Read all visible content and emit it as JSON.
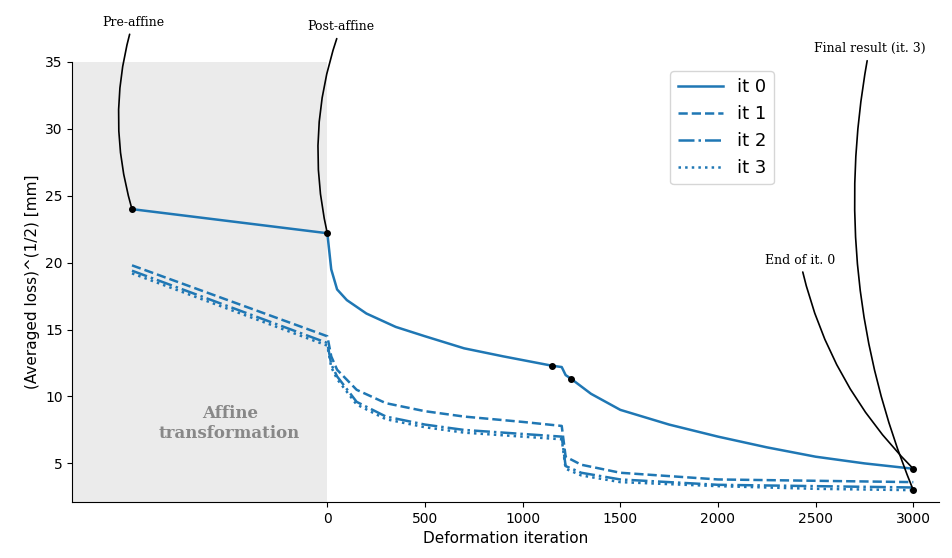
{
  "chart_data": {
    "type": "line",
    "xlabel": "Deformation iteration",
    "ylabel": "(Averaged loss)^(1/2) [mm]",
    "xlim": [
      -1305,
      3130
    ],
    "ylim": [
      2.1,
      35
    ],
    "xticks": [
      0,
      500,
      1000,
      1500,
      2000,
      2500,
      3000
    ],
    "yticks": [
      5,
      10,
      15,
      20,
      25,
      30,
      35
    ],
    "legend": "upper right",
    "shaded_region": {
      "x": [
        -1305,
        0
      ],
      "text": "Affine\ntransformation",
      "text_x": -500,
      "text_y": 8
    },
    "series": [
      {
        "name": "it 0",
        "color": "#1f77b4",
        "line_style": "solid",
        "x": [
          -1000,
          0,
          20,
          50,
          100,
          200,
          350,
          500,
          700,
          900,
          1150,
          1200,
          1220,
          1250,
          1350,
          1500,
          1750,
          2000,
          2250,
          2500,
          2750,
          3000
        ],
        "values": [
          24.0,
          22.2,
          19.5,
          18.0,
          17.2,
          16.2,
          15.2,
          14.5,
          13.6,
          13.0,
          12.3,
          12.2,
          11.6,
          11.3,
          10.2,
          9.0,
          7.9,
          7.0,
          6.2,
          5.5,
          5.0,
          4.6
        ]
      },
      {
        "name": "it 1",
        "color": "#1f77b4",
        "line_style": "dashed",
        "x": [
          -1000,
          0,
          20,
          50,
          150,
          300,
          500,
          700,
          1000,
          1200,
          1220,
          1300,
          1500,
          2000,
          2500,
          3000
        ],
        "values": [
          19.8,
          14.5,
          13.0,
          12.0,
          10.5,
          9.5,
          8.9,
          8.5,
          8.1,
          7.8,
          5.5,
          4.9,
          4.3,
          3.8,
          3.7,
          3.6
        ]
      },
      {
        "name": "it 2",
        "color": "#1f77b4",
        "line_style": "dashdot",
        "x": [
          -1000,
          0,
          20,
          50,
          150,
          300,
          500,
          700,
          1000,
          1200,
          1220,
          1300,
          1500,
          2000,
          2500,
          3000
        ],
        "values": [
          19.4,
          14.0,
          12.4,
          11.5,
          9.6,
          8.5,
          7.9,
          7.5,
          7.2,
          7.0,
          4.8,
          4.3,
          3.8,
          3.4,
          3.3,
          3.2
        ]
      },
      {
        "name": "it 3",
        "color": "#1f77b4",
        "line_style": "dotted",
        "x": [
          -1000,
          0,
          20,
          50,
          150,
          300,
          500,
          700,
          1000,
          1200,
          1220,
          1300,
          1500,
          2000,
          2500,
          3000
        ],
        "values": [
          19.2,
          13.8,
          12.2,
          11.3,
          9.4,
          8.3,
          7.7,
          7.3,
          7.0,
          6.8,
          4.6,
          4.1,
          3.6,
          3.3,
          3.1,
          3.0
        ]
      }
    ],
    "annotations": [
      {
        "text": "Pre-affine",
        "x": -1000,
        "y": 24.0
      },
      {
        "text": "Post-affine",
        "x": 0,
        "y": 22.2
      },
      {
        "text": "End of it. 0",
        "x": 3000,
        "y": 4.6
      },
      {
        "text": "Final result (it. 3)",
        "x": 3000,
        "y": 3.0
      }
    ],
    "markers": [
      {
        "x": 1150,
        "y": 12.3
      },
      {
        "x": 1250,
        "y": 11.3
      }
    ]
  }
}
